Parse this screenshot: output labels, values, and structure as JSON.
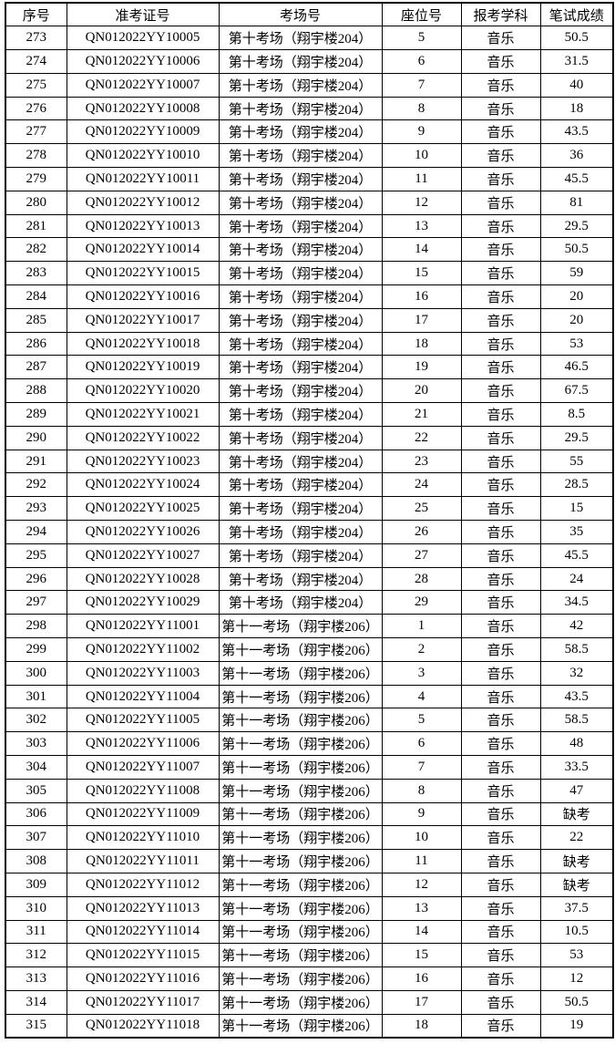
{
  "table": {
    "columns": [
      "序号",
      "准考证号",
      "考场号",
      "座位号",
      "报考学科",
      "笔试成绩"
    ],
    "column_keys": [
      "index",
      "ticket-number",
      "exam-room",
      "seat-number",
      "subject",
      "score"
    ],
    "colors": {
      "border": "#000000",
      "background": "#ffffff",
      "text": "#000000"
    },
    "rows": [
      [
        "273",
        "QN012022YY10005",
        "第十考场（翔宇楼204）",
        "5",
        "音乐",
        "50.5"
      ],
      [
        "274",
        "QN012022YY10006",
        "第十考场（翔宇楼204）",
        "6",
        "音乐",
        "31.5"
      ],
      [
        "275",
        "QN012022YY10007",
        "第十考场（翔宇楼204）",
        "7",
        "音乐",
        "40"
      ],
      [
        "276",
        "QN012022YY10008",
        "第十考场（翔宇楼204）",
        "8",
        "音乐",
        "18"
      ],
      [
        "277",
        "QN012022YY10009",
        "第十考场（翔宇楼204）",
        "9",
        "音乐",
        "43.5"
      ],
      [
        "278",
        "QN012022YY10010",
        "第十考场（翔宇楼204）",
        "10",
        "音乐",
        "36"
      ],
      [
        "279",
        "QN012022YY10011",
        "第十考场（翔宇楼204）",
        "11",
        "音乐",
        "45.5"
      ],
      [
        "280",
        "QN012022YY10012",
        "第十考场（翔宇楼204）",
        "12",
        "音乐",
        "81"
      ],
      [
        "281",
        "QN012022YY10013",
        "第十考场（翔宇楼204）",
        "13",
        "音乐",
        "29.5"
      ],
      [
        "282",
        "QN012022YY10014",
        "第十考场（翔宇楼204）",
        "14",
        "音乐",
        "50.5"
      ],
      [
        "283",
        "QN012022YY10015",
        "第十考场（翔宇楼204）",
        "15",
        "音乐",
        "59"
      ],
      [
        "284",
        "QN012022YY10016",
        "第十考场（翔宇楼204）",
        "16",
        "音乐",
        "20"
      ],
      [
        "285",
        "QN012022YY10017",
        "第十考场（翔宇楼204）",
        "17",
        "音乐",
        "20"
      ],
      [
        "286",
        "QN012022YY10018",
        "第十考场（翔宇楼204）",
        "18",
        "音乐",
        "53"
      ],
      [
        "287",
        "QN012022YY10019",
        "第十考场（翔宇楼204）",
        "19",
        "音乐",
        "46.5"
      ],
      [
        "288",
        "QN012022YY10020",
        "第十考场（翔宇楼204）",
        "20",
        "音乐",
        "67.5"
      ],
      [
        "289",
        "QN012022YY10021",
        "第十考场（翔宇楼204）",
        "21",
        "音乐",
        "8.5"
      ],
      [
        "290",
        "QN012022YY10022",
        "第十考场（翔宇楼204）",
        "22",
        "音乐",
        "29.5"
      ],
      [
        "291",
        "QN012022YY10023",
        "第十考场（翔宇楼204）",
        "23",
        "音乐",
        "55"
      ],
      [
        "292",
        "QN012022YY10024",
        "第十考场（翔宇楼204）",
        "24",
        "音乐",
        "28.5"
      ],
      [
        "293",
        "QN012022YY10025",
        "第十考场（翔宇楼204）",
        "25",
        "音乐",
        "15"
      ],
      [
        "294",
        "QN012022YY10026",
        "第十考场（翔宇楼204）",
        "26",
        "音乐",
        "35"
      ],
      [
        "295",
        "QN012022YY10027",
        "第十考场（翔宇楼204）",
        "27",
        "音乐",
        "45.5"
      ],
      [
        "296",
        "QN012022YY10028",
        "第十考场（翔宇楼204）",
        "28",
        "音乐",
        "24"
      ],
      [
        "297",
        "QN012022YY10029",
        "第十考场（翔宇楼204）",
        "29",
        "音乐",
        "34.5"
      ],
      [
        "298",
        "QN012022YY11001",
        "第十一考场（翔宇楼206）",
        "1",
        "音乐",
        "42"
      ],
      [
        "299",
        "QN012022YY11002",
        "第十一考场（翔宇楼206）",
        "2",
        "音乐",
        "58.5"
      ],
      [
        "300",
        "QN012022YY11003",
        "第十一考场（翔宇楼206）",
        "3",
        "音乐",
        "32"
      ],
      [
        "301",
        "QN012022YY11004",
        "第十一考场（翔宇楼206）",
        "4",
        "音乐",
        "43.5"
      ],
      [
        "302",
        "QN012022YY11005",
        "第十一考场（翔宇楼206）",
        "5",
        "音乐",
        "58.5"
      ],
      [
        "303",
        "QN012022YY11006",
        "第十一考场（翔宇楼206）",
        "6",
        "音乐",
        "48"
      ],
      [
        "304",
        "QN012022YY11007",
        "第十一考场（翔宇楼206）",
        "7",
        "音乐",
        "33.5"
      ],
      [
        "305",
        "QN012022YY11008",
        "第十一考场（翔宇楼206）",
        "8",
        "音乐",
        "47"
      ],
      [
        "306",
        "QN012022YY11009",
        "第十一考场（翔宇楼206）",
        "9",
        "音乐",
        "缺考"
      ],
      [
        "307",
        "QN012022YY11010",
        "第十一考场（翔宇楼206）",
        "10",
        "音乐",
        "22"
      ],
      [
        "308",
        "QN012022YY11011",
        "第十一考场（翔宇楼206）",
        "11",
        "音乐",
        "缺考"
      ],
      [
        "309",
        "QN012022YY11012",
        "第十一考场（翔宇楼206）",
        "12",
        "音乐",
        "缺考"
      ],
      [
        "310",
        "QN012022YY11013",
        "第十一考场（翔宇楼206）",
        "13",
        "音乐",
        "37.5"
      ],
      [
        "311",
        "QN012022YY11014",
        "第十一考场（翔宇楼206）",
        "14",
        "音乐",
        "10.5"
      ],
      [
        "312",
        "QN012022YY11015",
        "第十一考场（翔宇楼206）",
        "15",
        "音乐",
        "53"
      ],
      [
        "313",
        "QN012022YY11016",
        "第十一考场（翔宇楼206）",
        "16",
        "音乐",
        "12"
      ],
      [
        "314",
        "QN012022YY11017",
        "第十一考场（翔宇楼206）",
        "17",
        "音乐",
        "50.5"
      ],
      [
        "315",
        "QN012022YY11018",
        "第十一考场（翔宇楼206）",
        "18",
        "音乐",
        "19"
      ]
    ]
  }
}
